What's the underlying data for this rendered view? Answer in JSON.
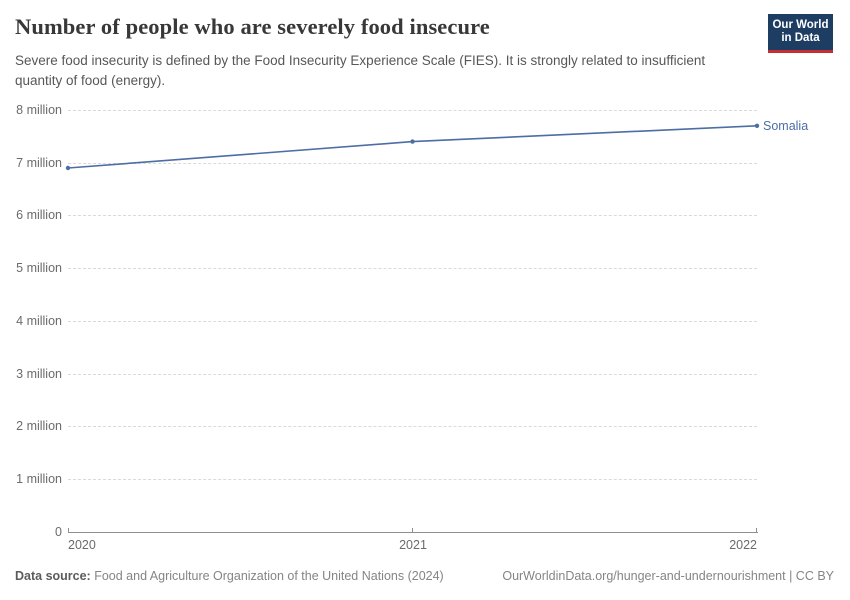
{
  "header": {
    "title": "Number of people who are severely food insecure",
    "subtitle": "Severe food insecurity is defined by the Food Insecurity Experience Scale (FIES). It is strongly related to insufficient quantity of food (energy).",
    "logo": {
      "line1": "Our World",
      "line2": "in Data",
      "bg_color": "#1d3d63",
      "accent_color": "#c62d36"
    }
  },
  "chart_data": {
    "type": "line",
    "title": "Number of people who are severely food insecure",
    "entity": "Somalia",
    "x": [
      2020,
      2021,
      2022
    ],
    "series": [
      {
        "name": "Somalia",
        "values": [
          6900000,
          7400000,
          7700000
        ],
        "color": "#4c6da5"
      }
    ],
    "ylim": [
      0,
      8000000
    ],
    "yticks": [
      "0",
      "1 million",
      "2 million",
      "3 million",
      "4 million",
      "5 million",
      "6 million",
      "7 million",
      "8 million"
    ],
    "xticks": [
      "2020",
      "2021",
      "2022"
    ],
    "grid": "horizontal-dashed",
    "legend": "end-of-line-label",
    "ylabel": "",
    "xlabel": ""
  },
  "footer": {
    "datasource_label": "Data source:",
    "datasource_text": " Food and Agriculture Organization of the United Nations (2024)",
    "link_text": "OurWorldinData.org/hunger-and-undernourishment | CC BY"
  }
}
